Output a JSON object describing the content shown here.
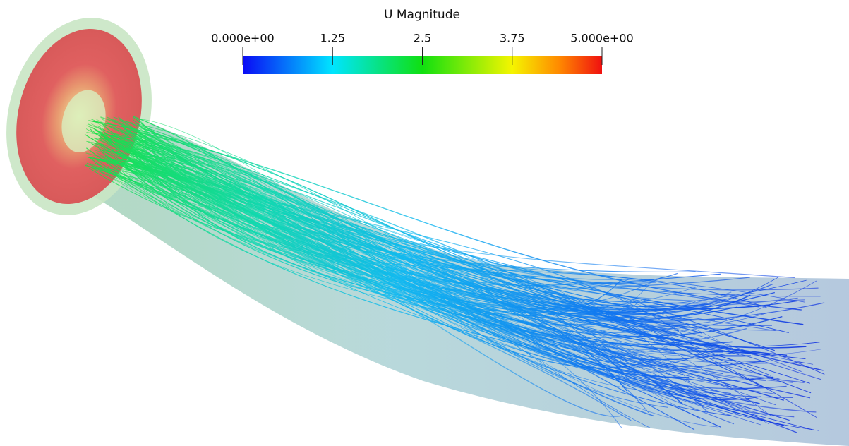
{
  "colorbar": {
    "title": "U  Magnitude",
    "range": [
      0,
      5
    ],
    "ticks": [
      {
        "value": 0,
        "label": "0.000e+00"
      },
      1.25,
      2.5,
      3.75,
      {
        "value": 5,
        "label": "5.000e+00"
      }
    ]
  }
}
